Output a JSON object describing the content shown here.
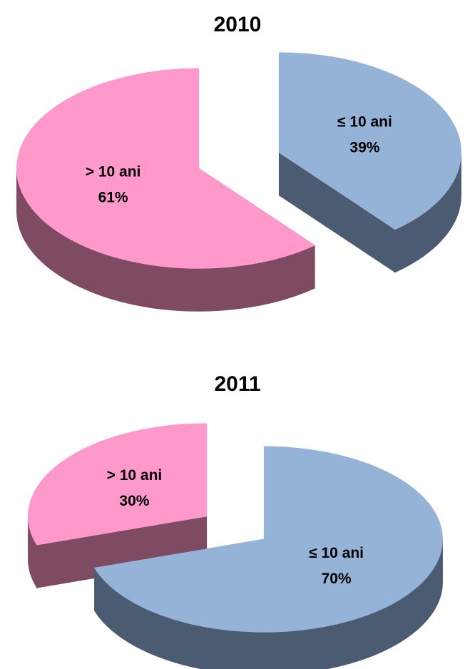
{
  "chart_data": [
    {
      "type": "pie",
      "title": "2010",
      "categories": [
        "≤ 10 ani",
        "> 10 ani"
      ],
      "values": [
        39,
        61
      ],
      "value_labels": [
        "39%",
        "61%"
      ],
      "colors": [
        "#95b3d7",
        "#ff99cc"
      ],
      "side_colors": [
        "#4b5b72",
        "#7f4b62"
      ]
    },
    {
      "type": "pie",
      "title": "2011",
      "categories": [
        "≤ 10 ani",
        "> 10 ani"
      ],
      "values": [
        70,
        30
      ],
      "value_labels": [
        "70%",
        "30%"
      ],
      "colors": [
        "#95b3d7",
        "#ff99cc"
      ],
      "side_colors": [
        "#4b5b72",
        "#7f4b62"
      ]
    }
  ]
}
